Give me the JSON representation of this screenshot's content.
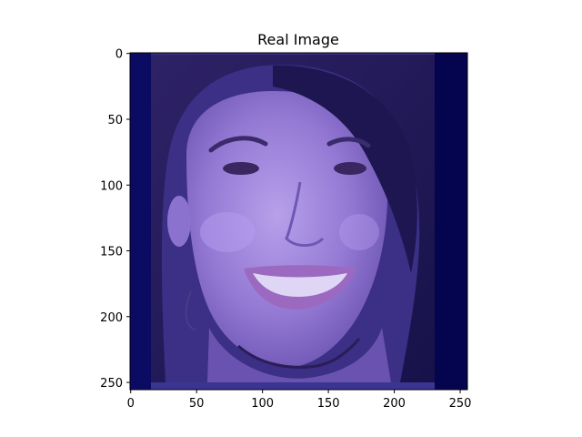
{
  "figure": {
    "title": "Real Image"
  },
  "image": {
    "x_ticks": [
      "0",
      "50",
      "100",
      "150",
      "200",
      "250"
    ],
    "y_ticks": [
      "0",
      "50",
      "100",
      "150",
      "200",
      "250"
    ],
    "x_tick_values": [
      0,
      50,
      100,
      150,
      200,
      250
    ],
    "y_tick_values": [
      0,
      50,
      100,
      150,
      200,
      250
    ],
    "x_range": [
      -0.5,
      255.5
    ],
    "y_range": [
      -0.5,
      255.5
    ],
    "colors": {
      "background_navy": "#06065a",
      "skin": "#8a6fd0",
      "skin_highlight": "#b39ae6",
      "hair": "#241a55",
      "lips": "#9b6ac0",
      "teeth": "#dfd6f5",
      "eyes": "#3a2660"
    }
  }
}
